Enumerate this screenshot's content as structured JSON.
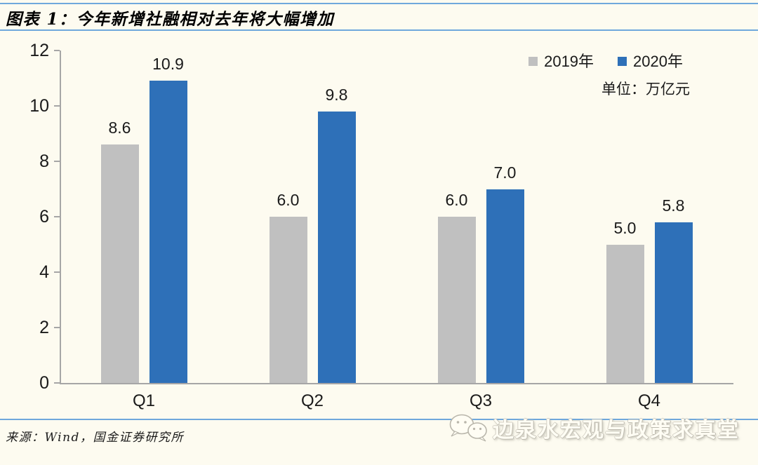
{
  "header": {
    "title": "图表 1：今年新增社融相对去年将大幅增加"
  },
  "legend": {
    "unit_label": "单位：万亿元"
  },
  "chart_data": {
    "type": "bar",
    "title": "今年新增社融相对去年将大幅增加",
    "categories": [
      "Q1",
      "Q2",
      "Q3",
      "Q4"
    ],
    "series": [
      {
        "name": "2019年",
        "color": "#c0c0c0",
        "values": [
          8.6,
          6.0,
          6.0,
          5.0
        ]
      },
      {
        "name": "2020年",
        "color": "#2e70b8",
        "values": [
          10.9,
          9.8,
          7.0,
          5.8
        ]
      }
    ],
    "unit": "万亿元",
    "xlabel": "",
    "ylabel": "",
    "ylim": [
      0,
      12
    ],
    "yticks": [
      0,
      2,
      4,
      6,
      8,
      10,
      12
    ],
    "grid": false,
    "legend_position": "top-right",
    "value_labels": true,
    "value_label_format": "one-decimal"
  },
  "footer": {
    "source": "来源：Wind，国金证券研究所",
    "watermark": "边泉水宏观与政策求真堂"
  },
  "icons": {
    "watermark_icon": "wechat-icon"
  },
  "colors": {
    "background": "#fdfbf0",
    "rule_blue": "#6fa8dc",
    "axis_gray": "#a6a6a6",
    "bar_2019": "#c0c0c0",
    "bar_2020": "#2e70b8"
  }
}
